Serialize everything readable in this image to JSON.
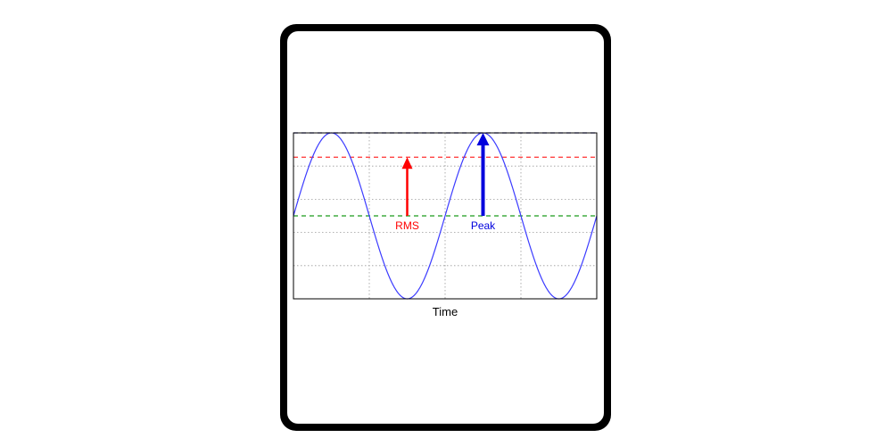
{
  "chart_data": {
    "type": "line",
    "title": "",
    "xlabel": "Time",
    "ylabel": "",
    "xlim": [
      0,
      4
    ],
    "ylim": [
      -1,
      1
    ],
    "grid": true,
    "series": [
      {
        "function": "sine",
        "amplitude": 1,
        "periods": 2,
        "color": "#3b3bff"
      }
    ],
    "reference_lines": [
      {
        "y": 1,
        "color": "#1a1a80",
        "style": "dashed"
      },
      {
        "y": 0.707,
        "color": "#ff3030",
        "style": "dashed"
      },
      {
        "y": 0,
        "color": "#1a9a1a",
        "style": "dashed"
      }
    ],
    "annotations": [
      {
        "label": "RMS",
        "x": 1.5,
        "from_y": 0,
        "to_y": 0.707,
        "color": "#ff0000"
      },
      {
        "label": "Peak",
        "x": 2.5,
        "from_y": 0,
        "to_y": 1,
        "color": "#0000dd"
      }
    ]
  }
}
